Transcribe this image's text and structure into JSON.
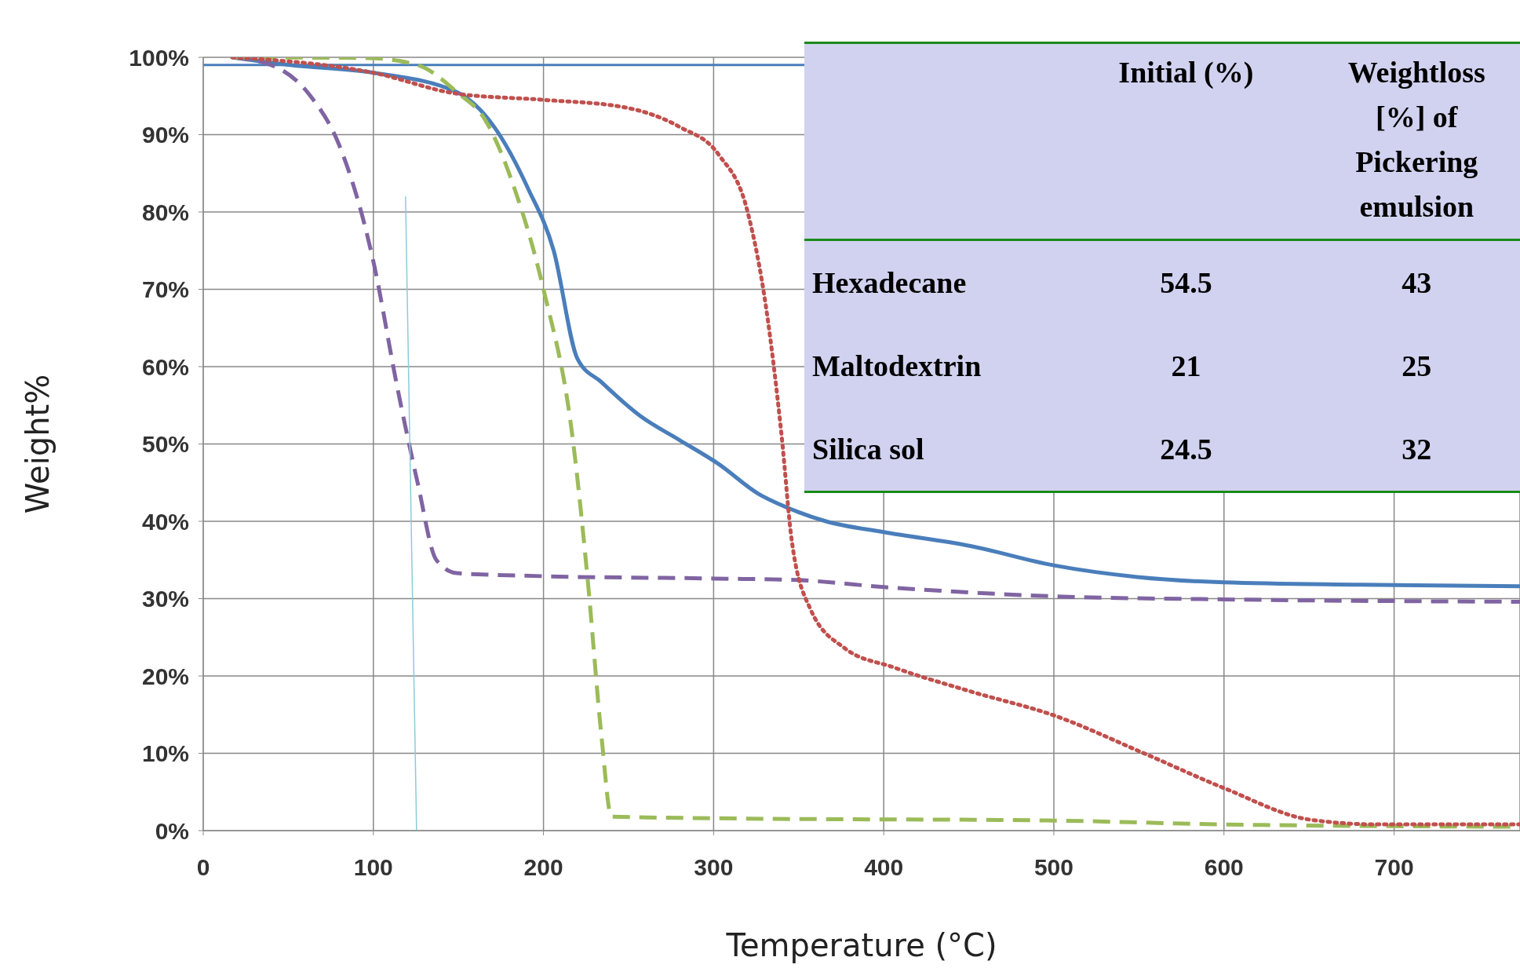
{
  "chart_data": [
    {
      "type": "line",
      "xlabel": "Temperature (°C)",
      "ylabel": "Weight%",
      "xlim": [
        0,
        774
      ],
      "xticks": [
        0,
        100,
        200,
        300,
        400,
        500,
        600,
        700
      ],
      "ylim": [
        0,
        100
      ],
      "yticks": [
        {
          "value": 0,
          "label": "0%"
        },
        {
          "value": 10,
          "label": "10%"
        },
        {
          "value": 20,
          "label": "20%"
        },
        {
          "value": 30,
          "label": "30%"
        },
        {
          "value": 40,
          "label": "40%"
        },
        {
          "value": 50,
          "label": "50%"
        },
        {
          "value": 60,
          "label": "60%"
        },
        {
          "value": 70,
          "label": "70%"
        },
        {
          "value": 80,
          "label": "80%"
        },
        {
          "value": 90,
          "label": "90%"
        },
        {
          "value": 100,
          "label": "100%"
        }
      ],
      "grid": true,
      "ref_lines": [
        {
          "axis": "y",
          "value": 99,
          "color": "#4a7ebb"
        }
      ],
      "series": [
        {
          "color": "#4a7ebb",
          "line_style": "solid",
          "x": [
            17,
            51,
            100,
            149,
            171,
            191,
            206,
            220,
            234,
            257,
            280,
            303,
            326,
            343,
            366,
            400,
            451,
            500,
            549,
            600,
            680,
            774
          ],
          "values": [
            100,
            99,
            98,
            95.5,
            91,
            83,
            75,
            61,
            58,
            53.6,
            50.5,
            47.4,
            43.6,
            41.8,
            40,
            38.6,
            36.8,
            34.3,
            32.8,
            32.1,
            31.8,
            31.6
          ]
        },
        {
          "color": "#8064a2",
          "line_style": "dashed",
          "x": [
            17,
            40,
            63,
            80,
            100,
            114,
            126,
            137,
            149,
            200,
            300,
            349,
            400,
            500,
            600,
            774
          ],
          "values": [
            100,
            99,
            95,
            88.6,
            73.6,
            57.4,
            45,
            35,
            33.3,
            32.9,
            32.6,
            32.4,
            31.5,
            30.3,
            29.9,
            29.6
          ]
        },
        {
          "color": "#9bbb59",
          "line_style": "dashed",
          "x": [
            17,
            97,
            126,
            149,
            166,
            183,
            200,
            217,
            226,
            234,
            240,
            300,
            500,
            600,
            774
          ],
          "values": [
            100,
            99.9,
            99,
            95.5,
            91.8,
            83,
            70,
            51,
            32.4,
            12.4,
            1.8,
            1.6,
            1.3,
            0.8,
            0.5
          ]
        },
        {
          "color": "#c0504d",
          "line_style": "dotted",
          "x": [
            17,
            100,
            149,
            200,
            246,
            280,
            303,
            320,
            331,
            340,
            346,
            357,
            377,
            406,
            451,
            500,
            554,
            600,
            651,
            691,
            774
          ],
          "values": [
            100,
            98,
            95.3,
            94.5,
            93.6,
            91,
            87.4,
            80,
            67.4,
            51,
            37.4,
            28.6,
            23.6,
            21.1,
            18,
            14.9,
            9.9,
            5.5,
            1.4,
            0.8,
            0.8
          ]
        },
        {
          "color": "#8ccbdb",
          "x": [
            118.9,
            125.4
          ],
          "values": [
            82,
            0
          ]
        }
      ]
    },
    {
      "type": "other",
      "data_labels": true,
      "categories": [
        "Hexadecane",
        "Maltodextrin",
        "Silica sol"
      ],
      "series": [
        {
          "name": "Initial (%)",
          "values": [
            54.5,
            21,
            24.5
          ]
        },
        {
          "name": "Weightloss [%] of Pickering emulsion",
          "values": [
            43,
            25,
            32
          ]
        }
      ]
    }
  ]
}
